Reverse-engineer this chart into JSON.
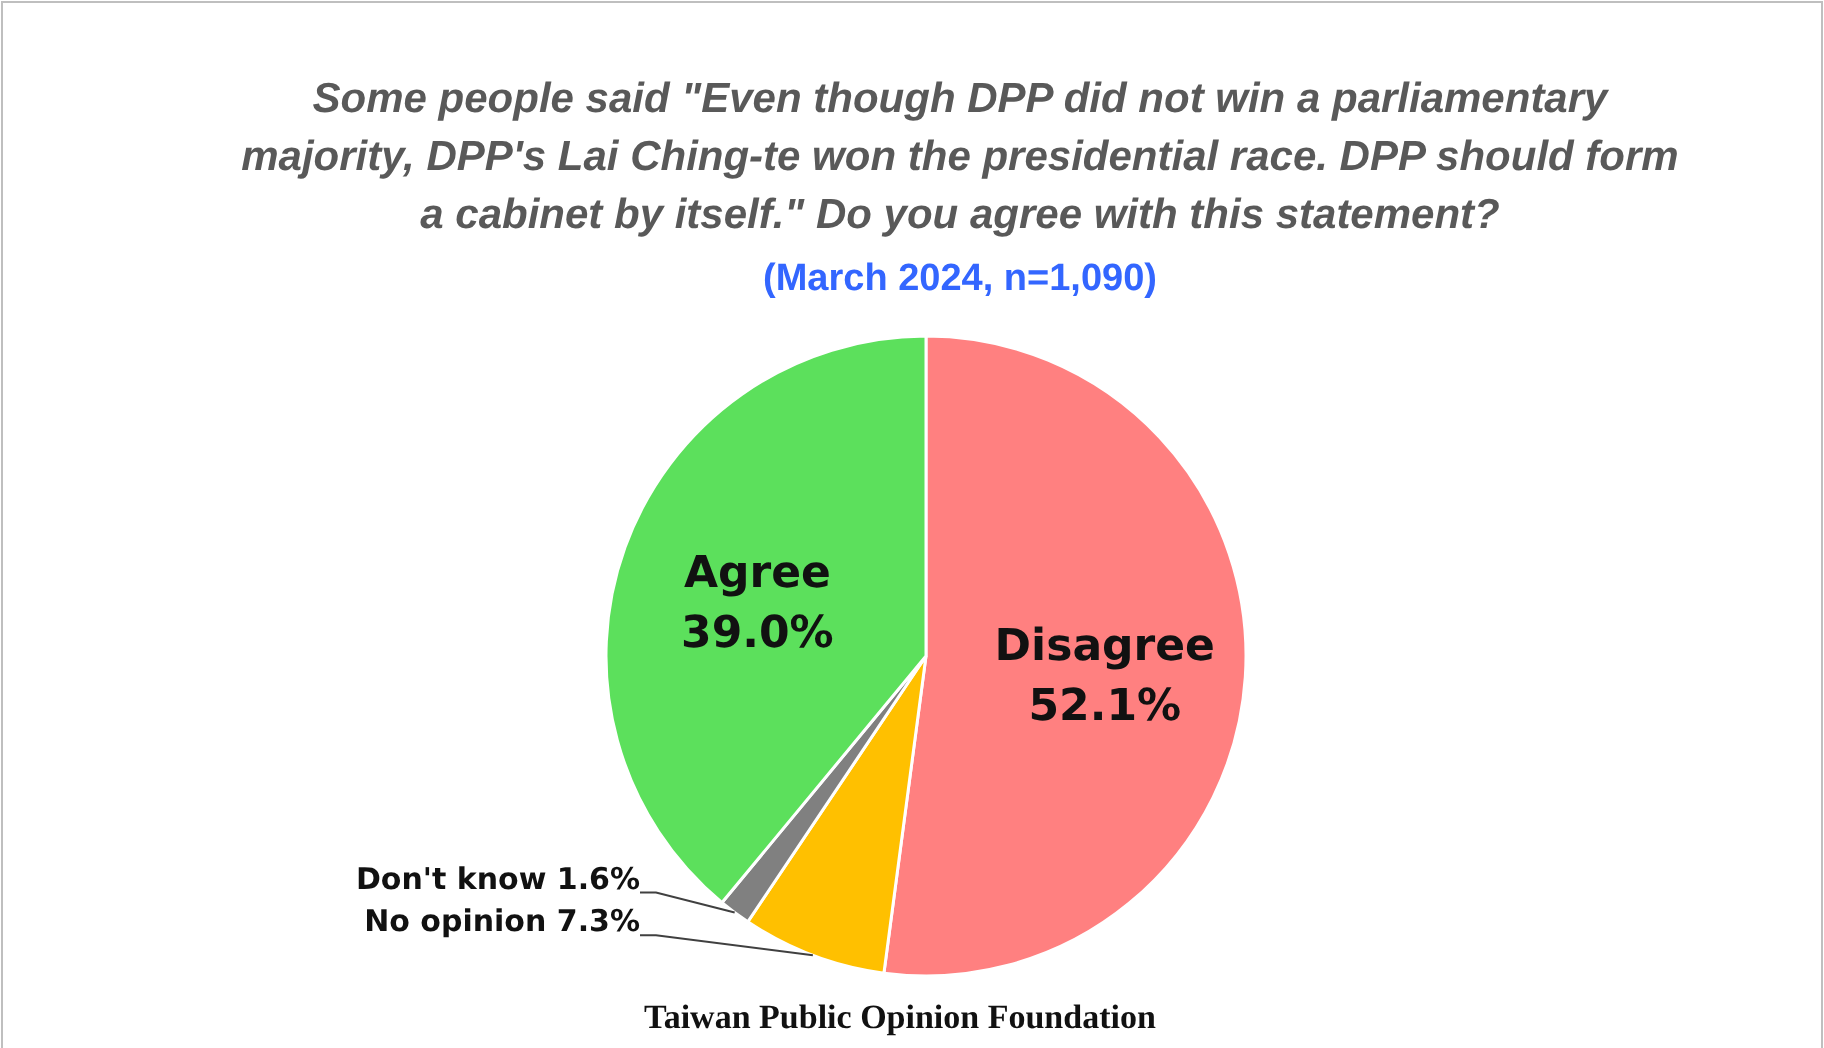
{
  "chart_data": {
    "type": "pie",
    "title": "Some people said \"Even though DPP did not win a parliamentary majority, DPP's Lai Ching-te won the presidential race. DPP should form a cabinet by itself.\" Do you agree with this statement?",
    "subtitle": "(March 2024, n=1,090)",
    "categories": [
      "Disagree",
      "No opinion",
      "Don't know",
      "Agree"
    ],
    "values": [
      52.1,
      7.3,
      1.6,
      39.0
    ],
    "value_labels": [
      "52.1%",
      "7.3%",
      "1.6%",
      "39.0%"
    ],
    "colors": [
      "#ff8080",
      "#ffc000",
      "#808080",
      "#5ce05c"
    ],
    "annotations": [
      "Taiwan Public Opinion Foundation"
    ]
  }
}
